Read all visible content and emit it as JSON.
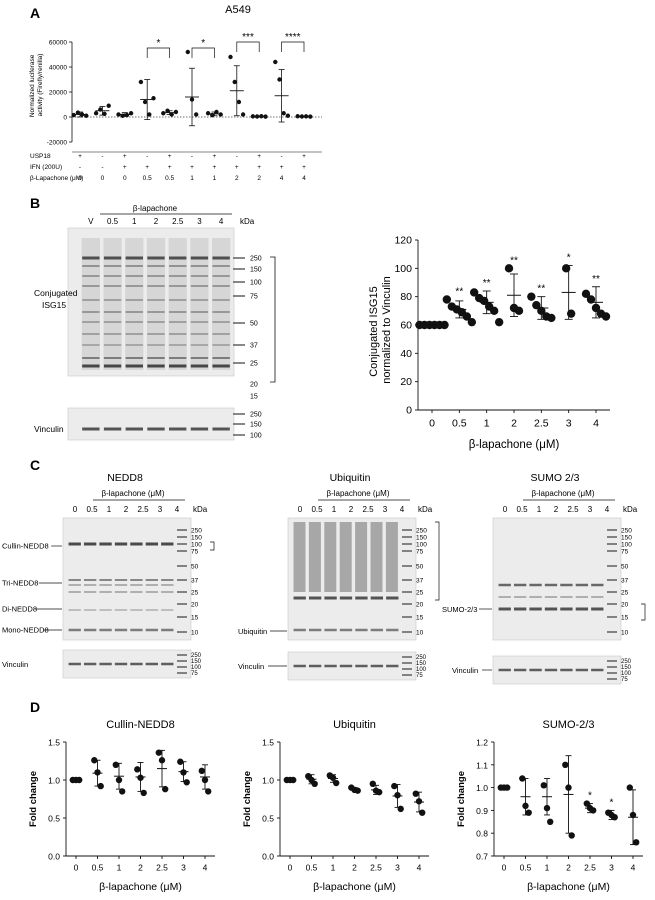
{
  "panels": {
    "A": {
      "letter": "A",
      "title": "A549",
      "ylabel": "Normalized luciferase activity (Firefly/renilla)",
      "ylabel_lines": [
        "Normalized luciferase",
        "activity (Firefly/renilla)"
      ],
      "yticks": [
        "60000",
        "40000",
        "20000",
        "0",
        "-20000"
      ],
      "row_labels": [
        "USP18",
        "IFN (200U)",
        "β-Lapachone (μM)"
      ],
      "columns": [
        {
          "usp18": "+",
          "ifn": "-",
          "lap": "0"
        },
        {
          "usp18": "-",
          "ifn": "-",
          "lap": "0"
        },
        {
          "usp18": "+",
          "ifn": "+",
          "lap": "0"
        },
        {
          "usp18": "-",
          "ifn": "+",
          "lap": "0.5"
        },
        {
          "usp18": "+",
          "ifn": "+",
          "lap": "0.5"
        },
        {
          "usp18": "-",
          "ifn": "+",
          "lap": "1"
        },
        {
          "usp18": "+",
          "ifn": "+",
          "lap": "1"
        },
        {
          "usp18": "-",
          "ifn": "+",
          "lap": "2"
        },
        {
          "usp18": "+",
          "ifn": "+",
          "lap": "2"
        },
        {
          "usp18": "-",
          "ifn": "+",
          "lap": "4"
        },
        {
          "usp18": "+",
          "ifn": "+",
          "lap": "4"
        }
      ],
      "significance": [
        "*",
        "*",
        "***",
        "****"
      ]
    },
    "B": {
      "letter": "B",
      "treatment": "β-lapachone",
      "lanes": [
        "V",
        "0.5",
        "1",
        "2",
        "2.5",
        "3",
        "4"
      ],
      "kda": "kDa",
      "markers_top": [
        "250",
        "150",
        "100",
        "75",
        "50",
        "37",
        "25",
        "20",
        "15"
      ],
      "markers_bottom": [
        "250",
        "150",
        "100"
      ],
      "label_conj": [
        "Conjugated",
        "ISG15"
      ],
      "label_vinculin": "Vinculin"
    },
    "C": {
      "letter": "C",
      "blots": [
        {
          "title": "NEDD8",
          "treatment": "β-lapachone (μM)",
          "lanes": [
            "0",
            "0.5",
            "1",
            "2",
            "2.5",
            "3",
            "4"
          ],
          "kda": "kDa",
          "markers": [
            "250",
            "150",
            "100",
            "75",
            "50",
            "37",
            "25",
            "20",
            "15",
            "10"
          ],
          "labels": [
            "Cullin-NEDD8",
            "Tri-NEDD8",
            "Di-NEDD8",
            "Mono-NEDD8"
          ],
          "vinculin": "Vinculin",
          "vinc_markers": [
            "250",
            "150",
            "100",
            "75"
          ]
        },
        {
          "title": "Ubiquitin",
          "treatment": "β-lapachone (μM)",
          "lanes": [
            "0",
            "0.5",
            "1",
            "2",
            "2.5",
            "3",
            "4"
          ],
          "kda": "kDa",
          "markers": [
            "250",
            "150",
            "100",
            "75",
            "50",
            "37",
            "25",
            "20",
            "15",
            "10"
          ],
          "labels": [
            "Ubiquitin"
          ],
          "vinculin": "Vinculin",
          "vinc_markers": [
            "250",
            "150",
            "100",
            "75"
          ]
        },
        {
          "title": "SUMO 2/3",
          "treatment": "β-lapachone (μM)",
          "lanes": [
            "0",
            "0.5",
            "1",
            "2",
            "2.5",
            "3",
            "4"
          ],
          "kda": "kDa",
          "markers": [
            "250",
            "150",
            "100",
            "75",
            "50",
            "37",
            "25",
            "20",
            "15",
            "10"
          ],
          "labels": [
            "SUMO-2/3"
          ],
          "vinculin": "Vinculin",
          "vinc_markers": [
            "250",
            "150",
            "100",
            "75"
          ]
        }
      ]
    },
    "D": {
      "letter": "D"
    }
  },
  "chart_data": [
    {
      "id": "A",
      "type": "scatter",
      "title": "A549",
      "ylabel": "Normalized luciferase activity (Firefly/renilla)",
      "ylim": [
        -20000,
        60000
      ],
      "yticks": [
        -20000,
        0,
        20000,
        40000,
        60000
      ],
      "groups": [
        {
          "points": [
            1500,
            3500,
            2000,
            1000
          ],
          "mean": 2000,
          "sd": 2000
        },
        {
          "points": [
            3000,
            6000,
            2500,
            9000
          ],
          "mean": 5000,
          "sd": 3500
        },
        {
          "points": [
            2000,
            1000,
            1500,
            3000
          ],
          "mean": 2000,
          "sd": 1500
        },
        {
          "points": [
            28000,
            12000,
            2000,
            15000
          ],
          "mean": 14000,
          "sd": 16000
        },
        {
          "points": [
            3000,
            5000,
            2000,
            4000
          ],
          "mean": 3500,
          "sd": 1500
        },
        {
          "points": [
            52000,
            14000,
            2000
          ],
          "mean": 16000,
          "sd": 23000
        },
        {
          "points": [
            3000,
            1500,
            4000,
            2000
          ],
          "mean": 2500,
          "sd": 1500
        },
        {
          "points": [
            48000,
            28000,
            12000,
            2000
          ],
          "mean": 21000,
          "sd": 20000
        },
        {
          "points": [
            500,
            400,
            600,
            300
          ],
          "mean": 500,
          "sd": 200
        },
        {
          "points": [
            44000,
            30000,
            3000,
            1000
          ],
          "mean": 17000,
          "sd": 21000
        },
        {
          "points": [
            600,
            400,
            500,
            300
          ],
          "mean": 500,
          "sd": 200
        }
      ],
      "brackets": [
        {
          "from": 3,
          "to": 4,
          "label": "*"
        },
        {
          "from": 5,
          "to": 6,
          "label": "*"
        },
        {
          "from": 7,
          "to": 8,
          "label": "***"
        },
        {
          "from": 9,
          "to": 10,
          "label": "****"
        }
      ]
    },
    {
      "id": "B",
      "type": "scatter",
      "categories": [
        "0",
        "0.5",
        "1",
        "2",
        "2.5",
        "3",
        "4"
      ],
      "xlabel": "β-lapachone (μM)",
      "ylabel": "Conjugated ISG15 normalized to Vinculin",
      "ylabel_lines": [
        "Conjugated ISG15",
        "normalized to Vinculin"
      ],
      "ylim": [
        0,
        120
      ],
      "yticks": [
        0,
        20,
        40,
        60,
        80,
        100,
        120
      ],
      "groups": [
        {
          "points": [
            60,
            60,
            60,
            60,
            60,
            60
          ],
          "mean": 60,
          "sd": 0,
          "sig": ""
        },
        {
          "points": [
            78,
            73,
            71,
            69,
            66,
            62
          ],
          "mean": 71,
          "sd": 6,
          "sig": "**"
        },
        {
          "points": [
            83,
            79,
            77,
            73,
            70,
            62
          ],
          "mean": 76,
          "sd": 8,
          "sig": "**"
        },
        {
          "points": [
            100,
            72,
            70
          ],
          "mean": 81,
          "sd": 15,
          "sig": "**"
        },
        {
          "points": [
            80,
            74,
            70,
            66,
            65
          ],
          "mean": 72,
          "sd": 8,
          "sig": "**"
        },
        {
          "points": [
            100,
            68
          ],
          "mean": 83,
          "sd": 19,
          "sig": "*"
        },
        {
          "points": [
            82,
            78,
            72,
            68,
            66
          ],
          "mean": 76,
          "sd": 11,
          "sig": "**"
        }
      ]
    },
    {
      "id": "D1",
      "type": "scatter",
      "title": "Cullin-NEDD8",
      "categories": [
        "0",
        "0.5",
        "1",
        "2",
        "2.5",
        "3",
        "4"
      ],
      "xlabel": "β-lapachone (μM)",
      "ylabel": "Fold change",
      "ylim": [
        0,
        1.5
      ],
      "yticks": [
        0.0,
        0.5,
        1.0,
        1.5
      ],
      "ytick_labels": [
        "0.0",
        "0.5",
        "1.0",
        "1.5"
      ],
      "groups": [
        {
          "points": [
            1.0,
            1.0,
            1.0
          ],
          "mean": 1.0,
          "sd": 0,
          "sig": ""
        },
        {
          "points": [
            1.26,
            1.1,
            0.92
          ],
          "mean": 1.09,
          "sd": 0.17,
          "sig": ""
        },
        {
          "points": [
            1.2,
            1.0,
            0.85
          ],
          "mean": 1.05,
          "sd": 0.17,
          "sig": ""
        },
        {
          "points": [
            1.14,
            1.03,
            0.83
          ],
          "mean": 1.04,
          "sd": 0.19,
          "sig": ""
        },
        {
          "points": [
            1.36,
            1.26,
            0.88
          ],
          "mean": 1.15,
          "sd": 0.24,
          "sig": ""
        },
        {
          "points": [
            1.24,
            1.1,
            0.97
          ],
          "mean": 1.11,
          "sd": 0.13,
          "sig": ""
        },
        {
          "points": [
            1.12,
            1.0,
            0.85
          ],
          "mean": 1.04,
          "sd": 0.16,
          "sig": ""
        }
      ]
    },
    {
      "id": "D2",
      "type": "scatter",
      "title": "Ubiquitin",
      "categories": [
        "0",
        "0.5",
        "1",
        "2",
        "2.5",
        "3",
        "4"
      ],
      "xlabel": "β-lapachone (μM)",
      "ylabel": "Fold change",
      "ylim": [
        0,
        1.5
      ],
      "yticks": [
        0.0,
        0.5,
        1.0,
        1.5
      ],
      "ytick_labels": [
        "0.0",
        "0.5",
        "1.0",
        "1.5"
      ],
      "groups": [
        {
          "points": [
            1.0,
            1.0,
            1.0
          ],
          "mean": 1.0,
          "sd": 0,
          "sig": ""
        },
        {
          "points": [
            1.05,
            1.0,
            0.95
          ],
          "mean": 1.01,
          "sd": 0.06,
          "sig": ""
        },
        {
          "points": [
            1.06,
            1.03,
            0.96
          ],
          "mean": 1.02,
          "sd": 0.05,
          "sig": ""
        },
        {
          "points": [
            0.9,
            0.87,
            0.86
          ],
          "mean": 0.88,
          "sd": 0.02,
          "sig": ""
        },
        {
          "points": [
            0.95,
            0.86,
            0.84
          ],
          "mean": 0.87,
          "sd": 0.06,
          "sig": ""
        },
        {
          "points": [
            0.92,
            0.8,
            0.62
          ],
          "mean": 0.79,
          "sd": 0.15,
          "sig": ""
        },
        {
          "points": [
            0.82,
            0.72,
            0.57
          ],
          "mean": 0.71,
          "sd": 0.13,
          "sig": ""
        }
      ]
    },
    {
      "id": "D3",
      "type": "scatter",
      "title": "SUMO-2/3",
      "categories": [
        "0",
        "0.5",
        "1",
        "2",
        "2.5",
        "3",
        "4"
      ],
      "xlabel": "β-lapachone (μM)",
      "ylabel": "Fold change",
      "ylim": [
        0.7,
        1.2
      ],
      "yticks": [
        0.7,
        0.8,
        0.9,
        1.0,
        1.1,
        1.2
      ],
      "ytick_labels": [
        "0.7",
        "0.8",
        "0.9",
        "1.0",
        "1.1",
        "1.2"
      ],
      "groups": [
        {
          "points": [
            1.0,
            1.0,
            1.0
          ],
          "mean": 1.0,
          "sd": 0,
          "sig": ""
        },
        {
          "points": [
            1.04,
            0.92,
            0.89
          ],
          "mean": 0.96,
          "sd": 0.08,
          "sig": ""
        },
        {
          "points": [
            1.01,
            0.91,
            0.85
          ],
          "mean": 0.96,
          "sd": 0.08,
          "sig": ""
        },
        {
          "points": [
            1.1,
            1.0,
            0.79
          ],
          "mean": 0.97,
          "sd": 0.17,
          "sig": ""
        },
        {
          "points": [
            0.93,
            0.91,
            0.9
          ],
          "mean": 0.91,
          "sd": 0.02,
          "sig": "*"
        },
        {
          "points": [
            0.89,
            0.88,
            0.87
          ],
          "mean": 0.88,
          "sd": 0.02,
          "sig": "*"
        },
        {
          "points": [
            1.0,
            0.88,
            0.76
          ],
          "mean": 0.87,
          "sd": 0.12,
          "sig": ""
        }
      ]
    }
  ]
}
